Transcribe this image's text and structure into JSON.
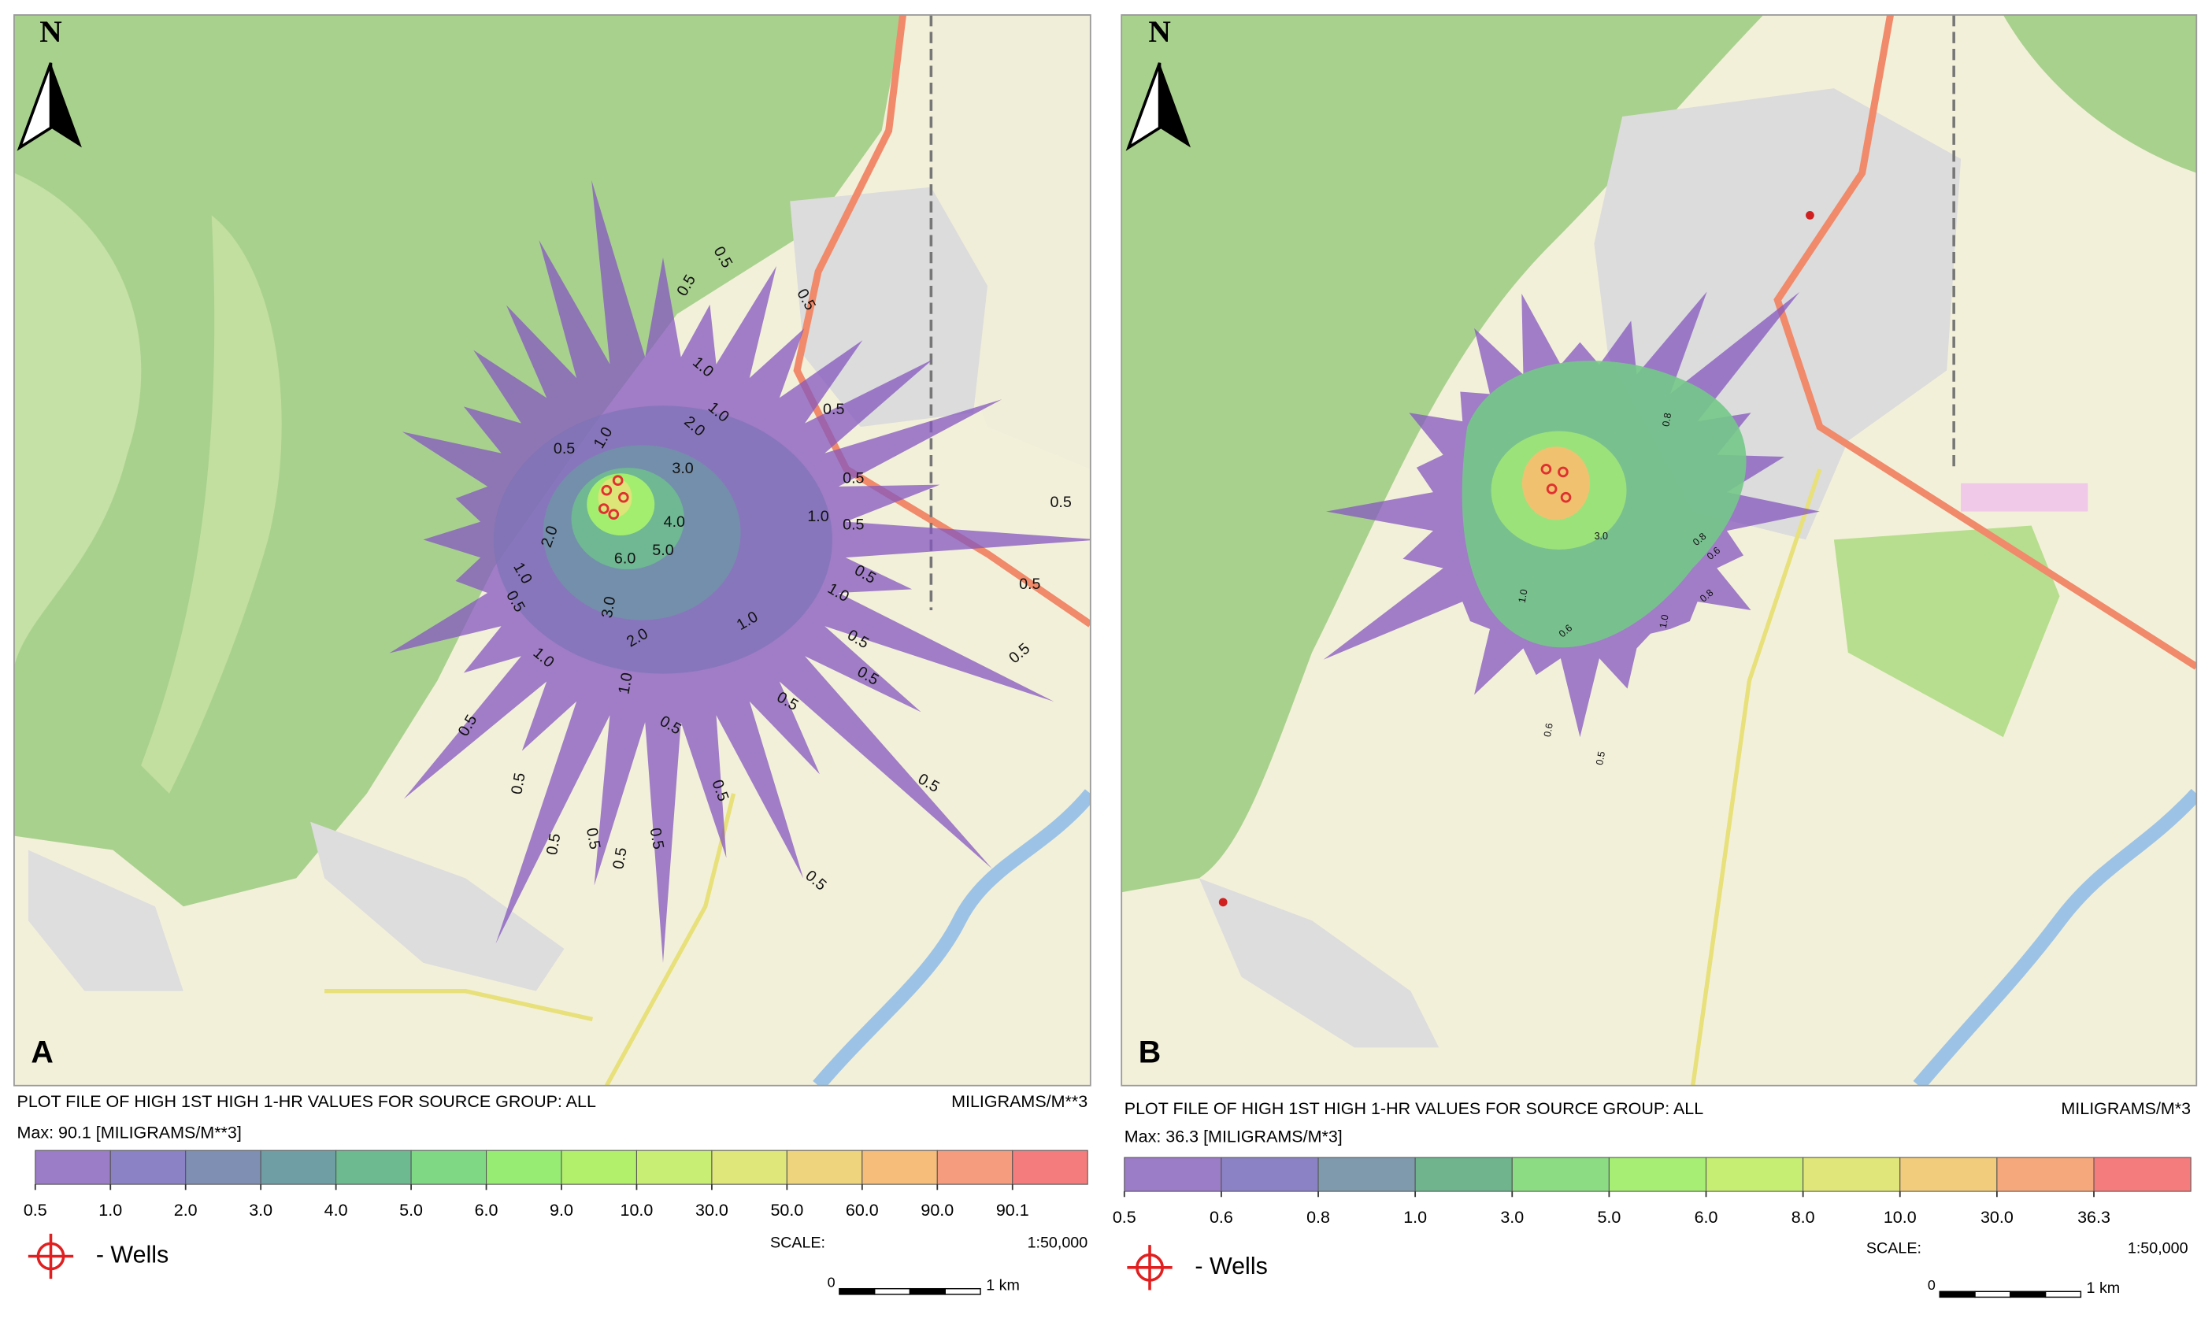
{
  "panels": [
    {
      "label": "A",
      "north": "N",
      "contour_labels": [
        "0.5",
        "0.5",
        "0.5",
        "1.0",
        "1.0",
        "2.0",
        "0.5",
        "1.0",
        "0.5",
        "3.0",
        "2.0",
        "4.0",
        "5.0",
        "6.0",
        "1.0",
        "0.5",
        "3.0",
        "2.0",
        "1.0",
        "1.0",
        "1.0",
        "1.0",
        "0.5",
        "1.0",
        "0.5",
        "0.5",
        "0.5",
        "0.5",
        "0.5",
        "0.5",
        "0.5",
        "0.5",
        "0.5",
        "0.5",
        "0.5",
        "0.5",
        "0.5",
        "0.5",
        "0.5",
        "0.5",
        "0.5",
        "0.5"
      ],
      "title": "PLOT FILE OF HIGH 1ST HIGH 1-HR VALUES FOR SOURCE GROUP: ALL",
      "units": "MILIGRAMS/M**3",
      "max": "Max:  90.1  [MILIGRAMS/M**3]",
      "legend": {
        "ticks": [
          "0.5",
          "1.0",
          "2.0",
          "3.0",
          "4.0",
          "5.0",
          "6.0",
          "9.0",
          "10.0",
          "30.0",
          "50.0",
          "60.0",
          "90.0",
          "90.1"
        ],
        "colors": [
          "#9b7cc6",
          "#8a82c4",
          "#7f8fb4",
          "#6f9fa4",
          "#6dba90",
          "#7fd884",
          "#97ec74",
          "#b2f06c",
          "#c8ee74",
          "#dfe67a",
          "#efd47e",
          "#f5bc7a",
          "#f59c7e",
          "#f47c7c"
        ]
      },
      "wells_label": "- Wells",
      "scale_label": "SCALE:",
      "scale": "1:50,000",
      "scale_bar": {
        "start": "0",
        "end": "1 km"
      }
    },
    {
      "label": "B",
      "north": "N",
      "contour_labels": [
        "3.0",
        "1.0",
        "1.0",
        "0.8",
        "0.8",
        "0.6",
        "0.6",
        "0.8",
        "0.6",
        "0.5"
      ],
      "title": "PLOT FILE OF HIGH 1ST HIGH 1-HR VALUES FOR SOURCE GROUP: ALL",
      "units": "MILIGRAMS/M*3",
      "max": "Max:  36.3  [MILIGRAMS/M*3]",
      "legend": {
        "ticks": [
          "0.5",
          "0.6",
          "0.8",
          "1.0",
          "3.0",
          "5.0",
          "6.0",
          "8.0",
          "10.0",
          "30.0",
          "36.3"
        ],
        "colors": [
          "#9b7cc6",
          "#8a82c4",
          "#7f9aac",
          "#6fb48c",
          "#8cdc84",
          "#a6ee74",
          "#c6ee72",
          "#e0e67a",
          "#f0cc7c",
          "#f5a87c",
          "#f47c7c"
        ]
      },
      "wells_label": "- Wells",
      "scale_label": "SCALE:",
      "scale": "1:50,000",
      "scale_bar": {
        "start": "0",
        "end": "1 km"
      }
    }
  ]
}
